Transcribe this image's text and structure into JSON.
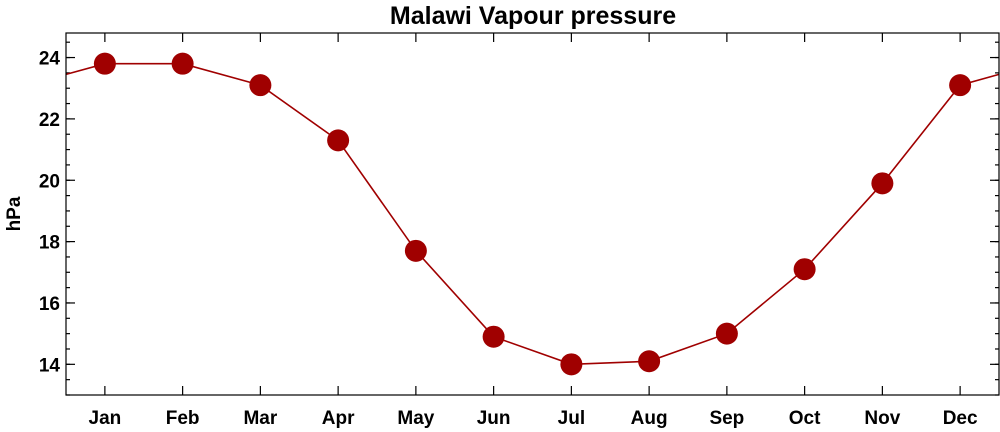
{
  "chart_data": {
    "type": "line",
    "title": "Malawi Vapour pressure",
    "xlabel": "",
    "ylabel": "hPa",
    "categories": [
      "Jan",
      "Feb",
      "Mar",
      "Apr",
      "May",
      "Jun",
      "Jul",
      "Aug",
      "Sep",
      "Oct",
      "Nov",
      "Dec"
    ],
    "series": [
      {
        "values": [
          23.8,
          23.8,
          23.1,
          21.3,
          17.7,
          14.9,
          14.0,
          14.1,
          15.0,
          17.1,
          19.9,
          23.1
        ]
      }
    ],
    "ylim": [
      13.0,
      24.8
    ],
    "yticks": [
      14,
      16,
      18,
      20,
      22,
      24
    ],
    "yticks_minor_step": 0.5,
    "wraps_around": true,
    "grid": false,
    "legend": "none",
    "marker": "circle",
    "color": "#a00000"
  }
}
